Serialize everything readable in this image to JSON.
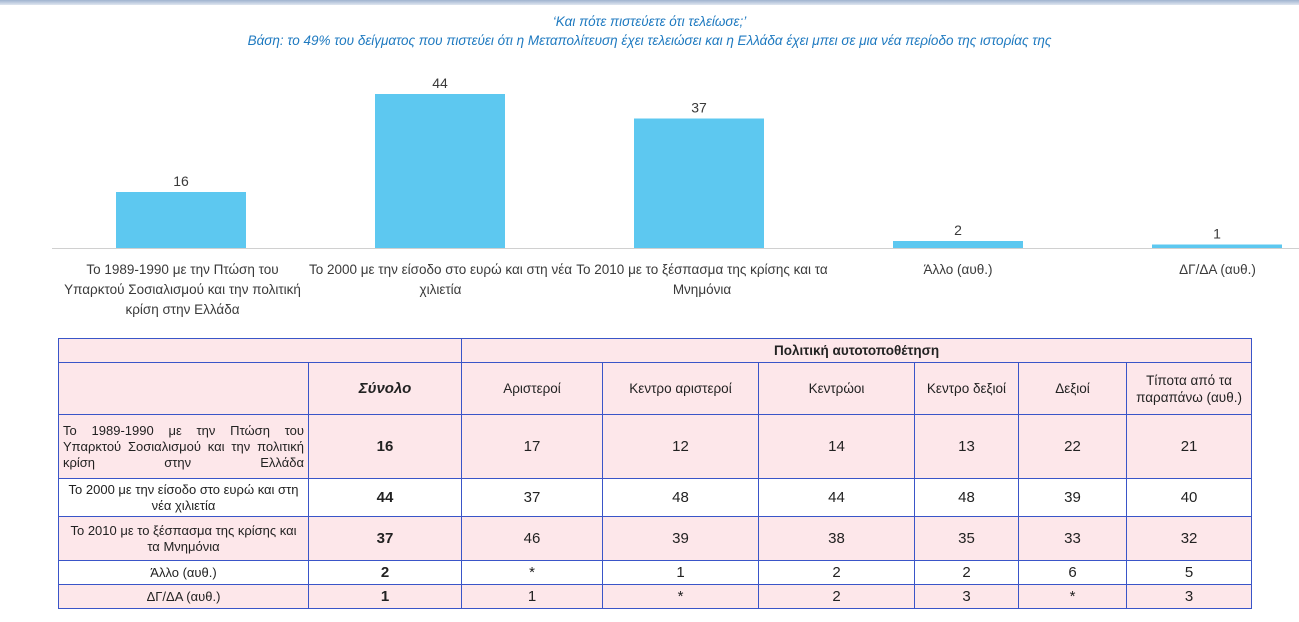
{
  "subtitle": {
    "line1": "‘Και πότε πιστεύετε ότι τελείωσε;’",
    "line2": "Βάση: το 49% του δείγματος που πιστεύει ότι η Μεταπολίτευση έχει τελειώσει και η Ελλάδα έχει μπει σε μια νέα περίοδο της ιστορίας της"
  },
  "chart_data": {
    "type": "bar",
    "categories": [
      "Το 1989-1990 με την Πτώση του Υπαρκτού Σοσιαλισμού και την πολιτική κρίση στην Ελλάδα",
      "Το 2000 με την είσοδο στο ευρώ και στη νέα χιλιετία",
      "Το 2010 με το ξέσπασμα της κρίσης και τα Μνημόνια",
      "Άλλο (αυθ.)",
      "ΔΓ/ΔΑ (αυθ.)"
    ],
    "values": [
      16,
      44,
      37,
      2,
      1
    ],
    "data_labels": [
      "16",
      "44",
      "37",
      "2",
      "1"
    ],
    "ylim": [
      0,
      44
    ],
    "bar_color": "#5dc8f0",
    "grid": false,
    "legend": "none"
  },
  "table": {
    "group_header": "Πολιτική αυτοτοποθέτηση",
    "total_header": "Σύνολο",
    "columns": [
      "Αριστεροί",
      "Κεντρο αριστεροί",
      "Κεντρώοι",
      "Κεντρο δεξιοί",
      "Δεξιοί",
      "Τίποτα από τα παραπάνω (αυθ.)"
    ],
    "rows": [
      {
        "label": "Το 1989-1990 με την Πτώση του Υπαρκτού Σοσιαλισμού και την πολιτική κρίση στην Ελλάδα",
        "total": "16",
        "values": [
          "17",
          "12",
          "14",
          "13",
          "22",
          "21"
        ]
      },
      {
        "label": "Το 2000 με την είσοδο στο ευρώ και στη νέα χιλιετία",
        "total": "44",
        "values": [
          "37",
          "48",
          "44",
          "48",
          "39",
          "40"
        ]
      },
      {
        "label": "Το 2010 με το ξέσπασμα της κρίσης και τα Μνημόνια",
        "total": "37",
        "values": [
          "46",
          "39",
          "38",
          "35",
          "33",
          "32"
        ]
      },
      {
        "label": "Άλλο (αυθ.)",
        "total": "2",
        "values": [
          "*",
          "1",
          "2",
          "2",
          "6",
          "5"
        ]
      },
      {
        "label": "ΔΓ/ΔΑ (αυθ.)",
        "total": "1",
        "values": [
          "1",
          "*",
          "2",
          "3",
          "*",
          "3"
        ]
      }
    ]
  },
  "colors": {
    "subtitle": "#1f7ac0",
    "bar": "#5dc8f0",
    "table_border": "#3a55c8",
    "table_pink": "#fde7ea"
  }
}
